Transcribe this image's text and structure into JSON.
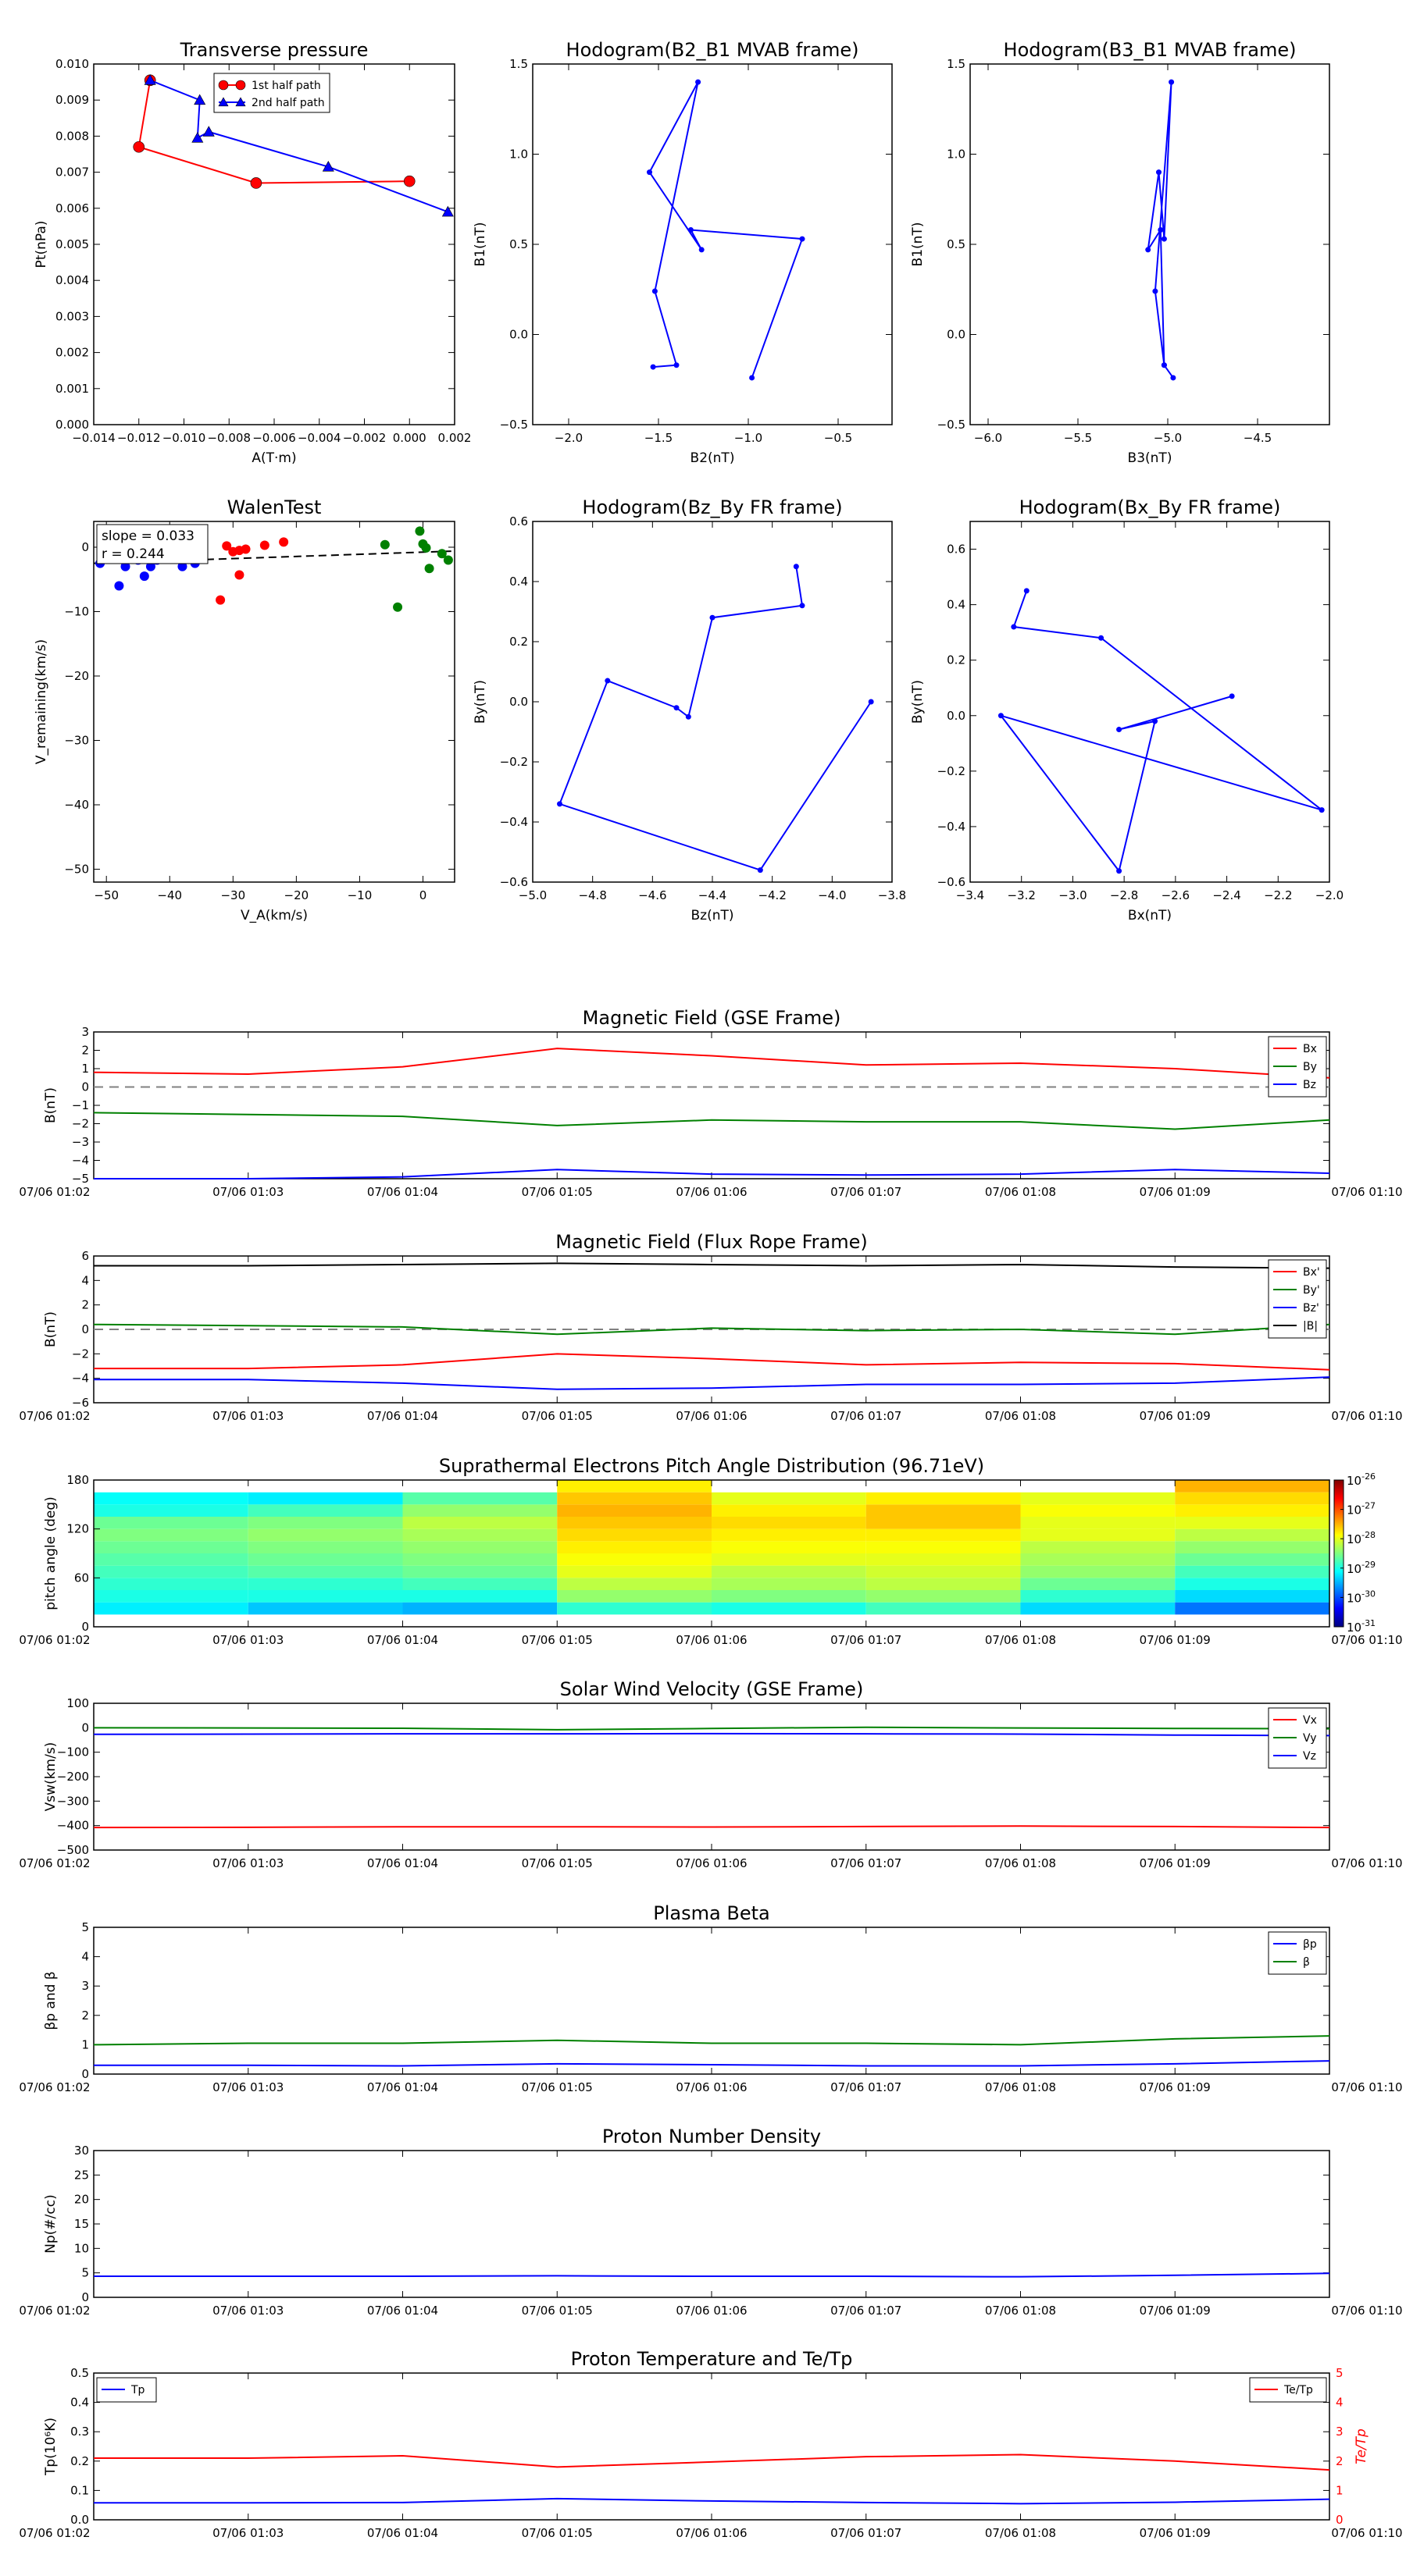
{
  "x_tick_labels": [
    "07/06 01:02",
    "07/06 01:03",
    "07/06 01:04",
    "07/06 01:05",
    "07/06 01:06",
    "07/06 01:07",
    "07/06 01:08",
    "07/06 01:09",
    "07/06 01:10"
  ],
  "colors": {
    "red": "#ff0000",
    "green": "#008000",
    "blue": "#0000ff",
    "black": "#000000",
    "gray": "#808080"
  },
  "chart_data": [
    {
      "id": "transverse_pressure",
      "type": "scatter",
      "title": "Transverse pressure",
      "xlabel": "A(T·m)",
      "ylabel": "Pt(nPa)",
      "xlim": [
        -0.014,
        0.002
      ],
      "ylim": [
        0,
        0.01
      ],
      "xticks": [
        -0.014,
        -0.012,
        -0.01,
        -0.008,
        -0.006,
        -0.004,
        -0.002,
        0.0,
        0.002
      ],
      "xtick_labels": [
        "−0.014",
        "−0.012",
        "−0.010",
        "−0.008",
        "−0.006",
        "−0.004",
        "−0.002",
        "0.000",
        "0.002"
      ],
      "yticks": [
        0,
        0.001,
        0.002,
        0.003,
        0.004,
        0.005,
        0.006,
        0.007,
        0.008,
        0.009,
        0.01
      ],
      "ytick_labels": [
        "0.000",
        "0.001",
        "0.002",
        "0.003",
        "0.004",
        "0.005",
        "0.006",
        "0.007",
        "0.008",
        "0.009",
        "0.010"
      ],
      "legend_placement": "top-center",
      "series": [
        {
          "name": "1st half path",
          "marker": "circle",
          "color": "#ff0000",
          "x": [
            0.0,
            -0.0068,
            -0.012,
            -0.0115
          ],
          "y": [
            0.00675,
            0.0067,
            0.0077,
            0.00955
          ]
        },
        {
          "name": "2nd half path",
          "marker": "triangle",
          "color": "#0000ff",
          "x": [
            -0.0115,
            -0.0093,
            -0.0094,
            -0.0089,
            -0.0036,
            0.0017
          ],
          "y": [
            0.00955,
            0.009,
            0.00795,
            0.00812,
            0.00715,
            0.0059
          ]
        }
      ]
    },
    {
      "id": "hodogram_b2_b1",
      "type": "line",
      "title": "Hodogram(B2_B1 MVAB frame)",
      "xlabel": "B2(nT)",
      "ylabel": "B1(nT)",
      "xlim": [
        -2.2,
        -0.2
      ],
      "ylim": [
        -0.5,
        1.5
      ],
      "xticks": [
        -2.0,
        -1.5,
        -1.0,
        -0.5
      ],
      "xtick_labels": [
        "−2.0",
        "−1.5",
        "−1.0",
        "−0.5"
      ],
      "yticks": [
        -0.5,
        0.0,
        0.5,
        1.0,
        1.5
      ],
      "ytick_labels": [
        "−0.5",
        "0.0",
        "0.5",
        "1.0",
        "1.5"
      ],
      "series": [
        {
          "color": "#0000ff",
          "x": [
            -0.98,
            -0.7,
            -1.32,
            -1.26,
            -1.55,
            -1.28,
            -1.52,
            -1.4,
            -1.53
          ],
          "y": [
            -0.24,
            0.53,
            0.58,
            0.47,
            0.9,
            1.4,
            0.24,
            -0.17,
            -0.18
          ]
        }
      ]
    },
    {
      "id": "hodogram_b3_b1",
      "type": "line",
      "title": "Hodogram(B3_B1 MVAB frame)",
      "xlabel": "B3(nT)",
      "ylabel": "B1(nT)",
      "xlim": [
        -6.1,
        -4.1
      ],
      "ylim": [
        -0.5,
        1.5
      ],
      "xticks": [
        -6.0,
        -5.5,
        -5.0,
        -4.5
      ],
      "xtick_labels": [
        "−6.0",
        "−5.5",
        "−5.0",
        "−4.5"
      ],
      "yticks": [
        -0.5,
        0.0,
        0.5,
        1.0,
        1.5
      ],
      "ytick_labels": [
        "−0.5",
        "0.0",
        "0.5",
        "1.0",
        "1.5"
      ],
      "series": [
        {
          "color": "#0000ff",
          "x": [
            -4.97,
            -5.02,
            -5.04,
            -5.11,
            -5.05,
            -5.02,
            -4.98,
            -5.07,
            -5.02
          ],
          "y": [
            -0.24,
            -0.17,
            0.58,
            0.47,
            0.9,
            0.53,
            1.4,
            0.24,
            -0.17
          ]
        }
      ]
    },
    {
      "id": "walen_test",
      "type": "scatter",
      "title": "WalenTest",
      "xlabel": "V_A(km/s)",
      "ylabel": "V_remaining(km/s)",
      "xlim": [
        -52,
        5
      ],
      "ylim": [
        -52,
        4
      ],
      "xticks": [
        -50,
        -40,
        -30,
        -20,
        -10,
        0
      ],
      "xtick_labels": [
        "−50",
        "−40",
        "−30",
        "−20",
        "−10",
        "0"
      ],
      "yticks": [
        -50,
        -40,
        -30,
        -20,
        -10,
        0
      ],
      "ytick_labels": [
        "−50",
        "−40",
        "−30",
        "−20",
        "−10",
        "0"
      ],
      "annotation": {
        "slope_text": "slope = 0.033",
        "r_text": "r = 0.244"
      },
      "fit_line": {
        "x": [
          -52,
          5
        ],
        "y": [
          -2.5,
          -0.6
        ]
      },
      "series": [
        {
          "color": "#0000ff",
          "x": [
            -51,
            -48,
            -47,
            -44,
            -43,
            -38,
            -36,
            -45,
            -42
          ],
          "y": [
            -2.5,
            -6.0,
            -3.0,
            -4.5,
            -3.0,
            -3.0,
            -2.5,
            -2.0,
            -2.0
          ]
        },
        {
          "color": "#ff0000",
          "x": [
            -31,
            -30,
            -29,
            -28,
            -25,
            -22,
            -32,
            -29
          ],
          "y": [
            0.2,
            -0.7,
            -0.5,
            -0.3,
            0.3,
            0.8,
            -8.2,
            -4.3
          ]
        },
        {
          "color": "#008000",
          "x": [
            -6,
            -0.5,
            0,
            0.5,
            1,
            3,
            4,
            -4
          ],
          "y": [
            0.4,
            2.5,
            0.5,
            -0.1,
            -3.3,
            -1.0,
            -2.0,
            -9.3
          ]
        }
      ]
    },
    {
      "id": "hodogram_bz_by",
      "type": "line",
      "title": "Hodogram(Bz_By FR frame)",
      "xlabel": "Bz(nT)",
      "ylabel": "By(nT)",
      "xlim": [
        -5.0,
        -3.8
      ],
      "ylim": [
        -0.6,
        0.6
      ],
      "xticks": [
        -5.0,
        -4.8,
        -4.6,
        -4.4,
        -4.2,
        -4.0,
        -3.8
      ],
      "xtick_labels": [
        "−5.0",
        "−4.8",
        "−4.6",
        "−4.4",
        "−4.2",
        "−4.0",
        "−3.8"
      ],
      "yticks": [
        -0.6,
        -0.4,
        -0.2,
        0.0,
        0.2,
        0.4,
        0.6
      ],
      "ytick_labels": [
        "−0.6",
        "−0.4",
        "−0.2",
        "0.0",
        "0.2",
        "0.4",
        "0.6"
      ],
      "series": [
        {
          "color": "#0000ff",
          "x": [
            -3.87,
            -4.24,
            -4.91,
            -4.75,
            -4.52,
            -4.48,
            -4.4,
            -4.1,
            -4.12
          ],
          "y": [
            0.0,
            -0.56,
            -0.34,
            0.07,
            -0.02,
            -0.05,
            0.28,
            0.32,
            0.45
          ]
        }
      ]
    },
    {
      "id": "hodogram_bx_by",
      "type": "line",
      "title": "Hodogram(Bx_By FR frame)",
      "xlabel": "Bx(nT)",
      "ylabel": "By(nT)",
      "xlim": [
        -3.4,
        -2.0
      ],
      "ylim": [
        -0.6,
        0.7
      ],
      "xticks": [
        -3.4,
        -3.2,
        -3.0,
        -2.8,
        -2.6,
        -2.4,
        -2.2,
        -2.0
      ],
      "xtick_labels": [
        "−3.4",
        "−3.2",
        "−3.0",
        "−2.8",
        "−2.6",
        "−2.4",
        "−2.2",
        "−2.0"
      ],
      "yticks": [
        -0.6,
        -0.4,
        -0.2,
        0.0,
        0.2,
        0.4,
        0.6
      ],
      "ytick_labels": [
        "−0.6",
        "−0.4",
        "−0.2",
        "0.0",
        "0.2",
        "0.4",
        "0.6"
      ],
      "series": [
        {
          "color": "#0000ff",
          "x": [
            -3.18,
            -3.23,
            -2.89,
            -2.03,
            -3.28,
            -2.82,
            -2.68,
            -2.82,
            -2.38
          ],
          "y": [
            0.45,
            0.32,
            0.28,
            -0.34,
            0.0,
            -0.56,
            -0.02,
            -0.05,
            0.07
          ]
        }
      ]
    },
    {
      "id": "mag_gse",
      "type": "line",
      "title": "Magnetic Field (GSE Frame)",
      "ylabel": "B(nT)",
      "ylim": [
        -5,
        3
      ],
      "yticks": [
        -5,
        -4,
        -3,
        -2,
        -1,
        0,
        1,
        2,
        3
      ],
      "ytick_labels": [
        "−5",
        "−4",
        "−3",
        "−2",
        "−1",
        "0",
        "1",
        "2",
        "3"
      ],
      "zero_line": 0,
      "legend_placement": "top-right",
      "x": [
        0,
        0.1,
        0.2,
        0.3,
        0.4,
        0.5,
        0.6,
        0.7,
        0.8
      ],
      "series": [
        {
          "name": "Bx",
          "color": "#ff0000",
          "values": [
            0.8,
            0.7,
            1.1,
            2.1,
            1.7,
            1.2,
            1.3,
            1.0,
            0.5
          ]
        },
        {
          "name": "By",
          "color": "#008000",
          "values": [
            -1.4,
            -1.5,
            -1.6,
            -2.1,
            -1.8,
            -1.9,
            -1.9,
            -2.3,
            -1.8
          ]
        },
        {
          "name": "Bz",
          "color": "#0000ff",
          "values": [
            -5.0,
            -5.0,
            -4.9,
            -4.5,
            -4.75,
            -4.8,
            -4.75,
            -4.5,
            -4.7
          ]
        }
      ]
    },
    {
      "id": "mag_fr",
      "type": "line",
      "title": "Magnetic Field (Flux Rope Frame)",
      "ylabel": "B(nT)",
      "ylim": [
        -6,
        6
      ],
      "yticks": [
        -6,
        -4,
        -2,
        0,
        2,
        4,
        6
      ],
      "ytick_labels": [
        "−6",
        "−4",
        "−2",
        "0",
        "2",
        "4",
        "6"
      ],
      "zero_line": 0,
      "legend_placement": "top-right",
      "series": [
        {
          "name": "Bx'",
          "color": "#ff0000",
          "values": [
            -3.2,
            -3.2,
            -2.9,
            -2.0,
            -2.4,
            -2.9,
            -2.7,
            -2.8,
            -3.3
          ]
        },
        {
          "name": "By'",
          "color": "#008000",
          "values": [
            0.4,
            0.3,
            0.2,
            -0.4,
            0.1,
            -0.1,
            0.0,
            -0.4,
            0.4
          ]
        },
        {
          "name": "Bz'",
          "color": "#0000ff",
          "values": [
            -4.1,
            -4.1,
            -4.4,
            -4.9,
            -4.8,
            -4.5,
            -4.5,
            -4.4,
            -3.9
          ]
        },
        {
          "name": "|B|",
          "color": "#000000",
          "values": [
            5.2,
            5.2,
            5.3,
            5.4,
            5.3,
            5.2,
            5.3,
            5.1,
            5.0
          ]
        }
      ]
    },
    {
      "id": "pitch_angle",
      "type": "heatmap",
      "title": "Suprathermal Electrons Pitch Angle Distribution (96.71eV)",
      "ylabel": "pitch angle (deg)",
      "ylim": [
        0,
        180
      ],
      "yticks": [
        0,
        60,
        120,
        180
      ],
      "ytick_labels": [
        "0",
        "60",
        "120",
        "180"
      ],
      "colorbar": {
        "scale": "log",
        "min_exp": -31,
        "max_exp": -26,
        "tick_labels": [
          "10",
          "10",
          "10",
          "10",
          "10",
          "10"
        ],
        "tick_exps": [
          "-26",
          "-27",
          "-28",
          "-29",
          "-30",
          "-31"
        ]
      },
      "pitch_bins": [
        0,
        15,
        30,
        45,
        60,
        75,
        90,
        105,
        120,
        135,
        150,
        165,
        180
      ],
      "log_values": [
        [
          -40,
          -29.2,
          -29.0,
          -28.9,
          -28.8,
          -28.7,
          -28.6,
          -28.5,
          -28.6,
          -29.0,
          -29.1,
          -40
        ],
        [
          -40,
          -29.4,
          -29.0,
          -28.9,
          -28.7,
          -28.6,
          -28.5,
          -28.4,
          -28.5,
          -28.8,
          -29.2,
          -40
        ],
        [
          -40,
          -29.5,
          -29.0,
          -28.8,
          -28.6,
          -28.5,
          -28.4,
          -28.3,
          -28.2,
          -28.4,
          -28.7,
          -40
        ],
        [
          -40,
          -28.9,
          -28.4,
          -28.2,
          -28.0,
          -27.9,
          -27.8,
          -27.7,
          -27.6,
          -27.5,
          -27.6,
          -27.8
        ],
        [
          -40,
          -29.0,
          -28.5,
          -28.3,
          -28.2,
          -28.0,
          -27.9,
          -27.8,
          -27.7,
          -27.8,
          -28.0,
          -40
        ],
        [
          -40,
          -28.8,
          -28.4,
          -28.2,
          -28.1,
          -28.0,
          -27.9,
          -27.8,
          -27.6,
          -27.6,
          -27.8,
          -40
        ],
        [
          -40,
          -29.3,
          -28.9,
          -28.6,
          -28.4,
          -28.3,
          -28.2,
          -28.0,
          -28.0,
          -27.9,
          -28.0,
          -40
        ],
        [
          -40,
          -29.8,
          -29.3,
          -29.0,
          -28.8,
          -28.6,
          -28.4,
          -28.2,
          -28.0,
          -27.8,
          -27.7,
          -27.5
        ]
      ]
    },
    {
      "id": "sw_velocity",
      "type": "line",
      "title": "Solar Wind Velocity (GSE Frame)",
      "ylabel": "Vsw(km/s)",
      "ylim": [
        -500,
        100
      ],
      "yticks": [
        -500,
        -400,
        -300,
        -200,
        -100,
        0,
        100
      ],
      "ytick_labels": [
        "−500",
        "−400",
        "−300",
        "−200",
        "−100",
        "0",
        "100"
      ],
      "legend_placement": "top-right",
      "series": [
        {
          "name": "Vx",
          "color": "#ff0000",
          "values": [
            -408,
            -407,
            -405,
            -405,
            -406,
            -404,
            -402,
            -404,
            -408
          ]
        },
        {
          "name": "Vy",
          "color": "#008000",
          "values": [
            0,
            -1,
            -2,
            -8,
            -3,
            2,
            -1,
            -3,
            -4
          ]
        },
        {
          "name": "Vz",
          "color": "#0000ff",
          "values": [
            -27,
            -26,
            -25,
            -25,
            -24,
            -25,
            -26,
            -30,
            -32
          ]
        }
      ]
    },
    {
      "id": "plasma_beta",
      "type": "line",
      "title": "Plasma Beta",
      "ylabel": "βp and β",
      "ylim": [
        0,
        5
      ],
      "yticks": [
        0,
        1,
        2,
        3,
        4,
        5
      ],
      "ytick_labels": [
        "0",
        "1",
        "2",
        "3",
        "4",
        "5"
      ],
      "legend_placement": "top-right",
      "series": [
        {
          "name": "βp",
          "color": "#0000ff",
          "values": [
            0.3,
            0.3,
            0.28,
            0.35,
            0.32,
            0.28,
            0.28,
            0.35,
            0.45
          ]
        },
        {
          "name": "β",
          "color": "#008000",
          "values": [
            1.0,
            1.05,
            1.05,
            1.15,
            1.05,
            1.05,
            1.0,
            1.2,
            1.3
          ]
        }
      ]
    },
    {
      "id": "proton_density",
      "type": "line",
      "title": "Proton Number Density",
      "ylabel": "Np(#/cc)",
      "ylim": [
        0,
        30
      ],
      "yticks": [
        0,
        5,
        10,
        15,
        20,
        25,
        30
      ],
      "ytick_labels": [
        "0",
        "5",
        "10",
        "15",
        "20",
        "25",
        "30"
      ],
      "series": [
        {
          "color": "#0000ff",
          "values": [
            4.3,
            4.3,
            4.3,
            4.4,
            4.3,
            4.3,
            4.2,
            4.5,
            4.9
          ]
        }
      ]
    },
    {
      "id": "proton_temp",
      "type": "line",
      "title": "Proton Temperature and Te/Tp",
      "ylabel": "Tp(10⁶K)",
      "y2label": "Te/Tp",
      "ylim": [
        0,
        0.5
      ],
      "yticks": [
        0,
        0.1,
        0.2,
        0.3,
        0.4,
        0.5
      ],
      "ytick_labels": [
        "0.0",
        "0.1",
        "0.2",
        "0.3",
        "0.4",
        "0.5"
      ],
      "y2lim": [
        0,
        5
      ],
      "y2ticks": [
        0,
        1,
        2,
        3,
        4,
        5
      ],
      "y2tick_labels": [
        "0",
        "1",
        "2",
        "3",
        "4",
        "5"
      ],
      "legend_left": "Tp",
      "legend_right": "Te/Tp",
      "series": [
        {
          "name": "Tp",
          "axis": "left",
          "color": "#0000ff",
          "values": [
            0.058,
            0.058,
            0.059,
            0.072,
            0.064,
            0.059,
            0.055,
            0.06,
            0.07
          ]
        },
        {
          "name": "Te/Tp",
          "axis": "right",
          "color": "#ff0000",
          "values": [
            2.1,
            2.1,
            2.18,
            1.8,
            1.97,
            2.15,
            2.22,
            2.0,
            1.7
          ]
        }
      ]
    }
  ]
}
